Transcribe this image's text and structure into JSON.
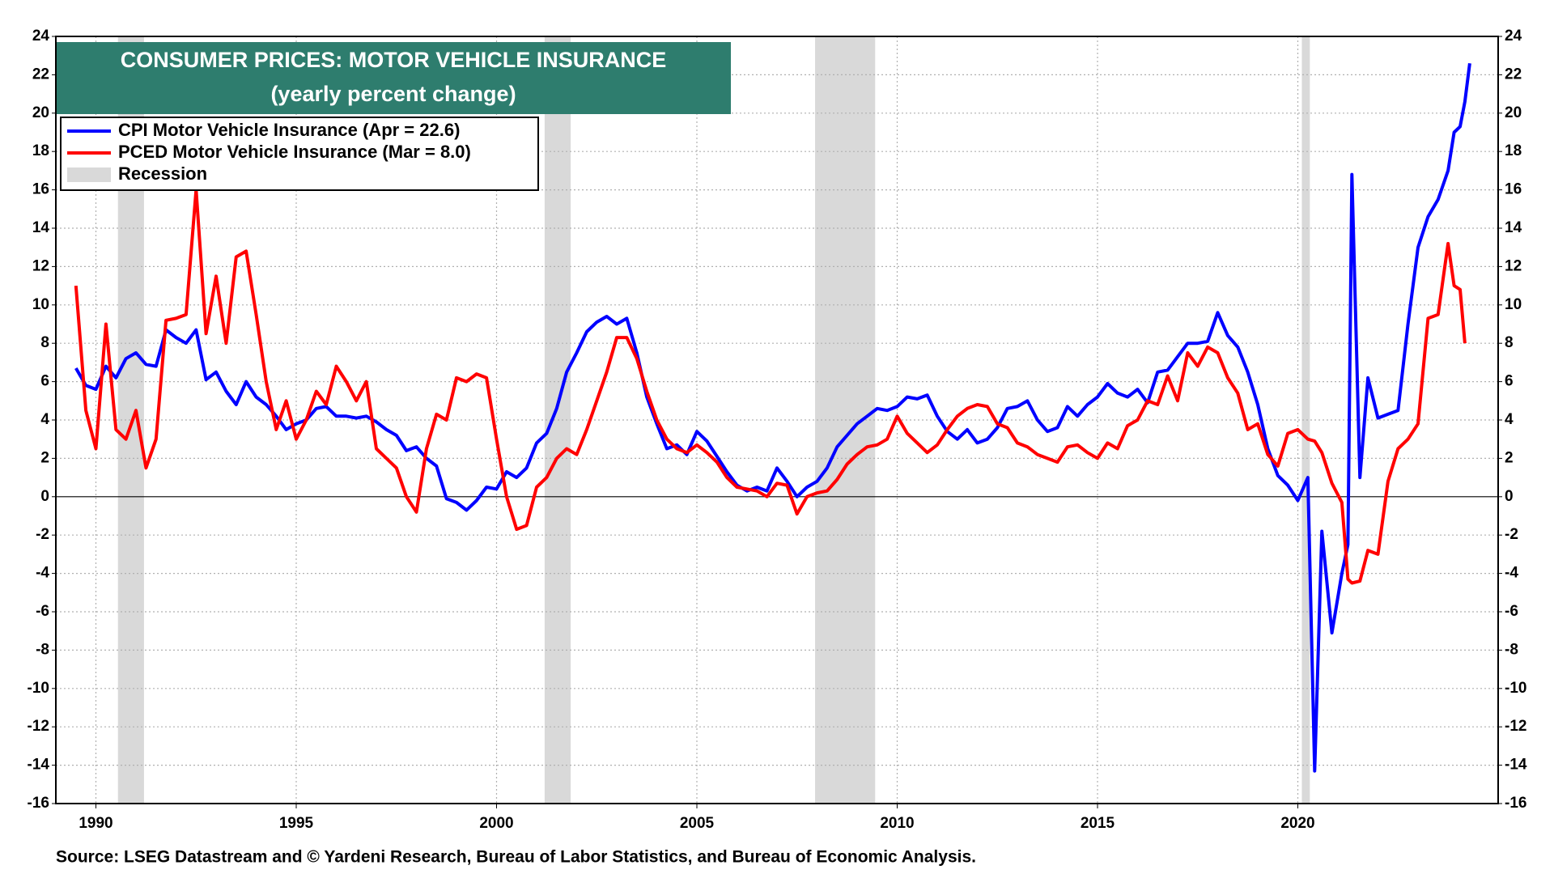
{
  "chart_data": {
    "type": "line",
    "title": "CONSUMER PRICES: MOTOR VEHICLE INSURANCE",
    "subtitle": "(yearly percent change)",
    "source": "Source: LSEG Datastream and © Yardeni Research, Bureau of Labor Statistics, and Bureau of Economic Analysis.",
    "recession_label": "Recession",
    "recession_color": "#d9d9d9",
    "recessions": [
      [
        1990.55,
        1991.2
      ],
      [
        2001.2,
        2001.85
      ],
      [
        2007.95,
        2009.45
      ],
      [
        2020.1,
        2020.3
      ]
    ],
    "x": [
      1989.5,
      1989.75,
      1990,
      1990.25,
      1990.5,
      1990.75,
      1991,
      1991.25,
      1991.5,
      1991.75,
      1992,
      1992.25,
      1992.5,
      1992.75,
      1993,
      1993.25,
      1993.5,
      1993.75,
      1994,
      1994.25,
      1994.5,
      1994.75,
      1995,
      1995.25,
      1995.5,
      1995.75,
      1996,
      1996.25,
      1996.5,
      1996.75,
      1997,
      1997.25,
      1997.5,
      1997.75,
      1998,
      1998.25,
      1998.5,
      1998.75,
      1999,
      1999.25,
      1999.5,
      1999.75,
      2000,
      2000.25,
      2000.5,
      2000.75,
      2001,
      2001.25,
      2001.5,
      2001.75,
      2002,
      2002.25,
      2002.5,
      2002.75,
      2003,
      2003.25,
      2003.5,
      2003.75,
      2004,
      2004.25,
      2004.5,
      2004.75,
      2005,
      2005.25,
      2005.5,
      2005.75,
      2006,
      2006.25,
      2006.5,
      2006.75,
      2007,
      2007.25,
      2007.5,
      2007.75,
      2008,
      2008.25,
      2008.5,
      2008.75,
      2009,
      2009.25,
      2009.5,
      2009.75,
      2010,
      2010.25,
      2010.5,
      2010.75,
      2011,
      2011.25,
      2011.5,
      2011.75,
      2012,
      2012.25,
      2012.5,
      2012.75,
      2013,
      2013.25,
      2013.5,
      2013.75,
      2014,
      2014.25,
      2014.5,
      2014.75,
      2015,
      2015.25,
      2015.5,
      2015.75,
      2016,
      2016.25,
      2016.5,
      2016.75,
      2017,
      2017.25,
      2017.5,
      2017.75,
      2018,
      2018.25,
      2018.5,
      2018.75,
      2019,
      2019.25,
      2019.5,
      2019.75,
      2020,
      2020.25,
      2020.42,
      2020.6,
      2020.85,
      2021.1,
      2021.25,
      2021.35,
      2021.55,
      2021.75,
      2022,
      2022.25,
      2022.5,
      2022.75,
      2023,
      2023.25,
      2023.5,
      2023.75,
      2023.9,
      2024.05,
      2024.17,
      2024.29
    ],
    "series": [
      {
        "name": "CPI  Motor Vehicle Insurance (Apr = 22.6)",
        "color": "#0000ff",
        "values": [
          6.7,
          5.8,
          5.6,
          6.8,
          6.2,
          7.2,
          7.5,
          6.9,
          6.8,
          8.7,
          8.3,
          8.0,
          8.7,
          6.1,
          6.5,
          5.5,
          4.8,
          6.0,
          5.2,
          4.8,
          4.2,
          3.5,
          3.8,
          4.0,
          4.6,
          4.7,
          4.2,
          4.2,
          4.1,
          4.2,
          3.9,
          3.5,
          3.2,
          2.4,
          2.6,
          2.0,
          1.6,
          -0.1,
          -0.3,
          -0.7,
          -0.2,
          0.5,
          0.4,
          1.3,
          1.0,
          1.5,
          2.8,
          3.3,
          4.6,
          6.5,
          7.5,
          8.6,
          9.1,
          9.4,
          9.0,
          9.3,
          7.5,
          5.2,
          3.8,
          2.5,
          2.7,
          2.2,
          3.4,
          2.9,
          2.1,
          1.3,
          0.6,
          0.3,
          0.5,
          0.3,
          1.5,
          0.8,
          0.0,
          0.5,
          0.8,
          1.5,
          2.6,
          3.2,
          3.8,
          4.2,
          4.6,
          4.5,
          4.7,
          5.2,
          5.1,
          5.3,
          4.2,
          3.4,
          3.0,
          3.5,
          2.8,
          3.0,
          3.6,
          4.6,
          4.7,
          5.0,
          4.0,
          3.4,
          3.6,
          4.7,
          4.2,
          4.8,
          5.2,
          5.9,
          5.4,
          5.2,
          5.6,
          4.9,
          6.5,
          6.6,
          7.3,
          8.0,
          8.0,
          8.1,
          9.6,
          8.4,
          7.8,
          6.5,
          4.8,
          2.5,
          1.1,
          0.6,
          -0.2,
          1.0,
          -14.3,
          -1.8,
          -7.1,
          -4.0,
          -2.5,
          16.8,
          1.0,
          6.2,
          4.1,
          4.3,
          4.5,
          9.0,
          13.0,
          14.6,
          15.5,
          17.0,
          19.0,
          19.3,
          20.6,
          22.6
        ]
      },
      {
        "name": "PCED Motor Vehicle Insurance (Mar = 8.0)",
        "color": "#ff0000",
        "values": [
          11.0,
          4.5,
          2.5,
          9.0,
          3.5,
          3.0,
          4.5,
          1.5,
          3.0,
          9.2,
          9.3,
          9.5,
          16.0,
          8.5,
          11.5,
          8.0,
          12.5,
          12.8,
          9.5,
          6.0,
          3.5,
          5.0,
          3.0,
          4.0,
          5.5,
          4.8,
          6.8,
          6.0,
          5.0,
          6.0,
          2.5,
          2.0,
          1.5,
          0.0,
          -0.8,
          2.5,
          4.3,
          4.0,
          6.2,
          6.0,
          6.4,
          6.2,
          3.0,
          0.0,
          -1.7,
          -1.5,
          0.5,
          1.0,
          2.0,
          2.5,
          2.2,
          3.5,
          5.0,
          6.5,
          8.3,
          8.3,
          7.2,
          5.5,
          4.0,
          3.0,
          2.5,
          2.3,
          2.7,
          2.3,
          1.8,
          1.0,
          0.5,
          0.4,
          0.3,
          0.0,
          0.7,
          0.6,
          -0.9,
          0.0,
          0.2,
          0.3,
          0.9,
          1.7,
          2.2,
          2.6,
          2.7,
          3.0,
          4.2,
          3.3,
          2.8,
          2.3,
          2.7,
          3.5,
          4.2,
          4.6,
          4.8,
          4.7,
          3.8,
          3.6,
          2.8,
          2.6,
          2.2,
          2.0,
          1.8,
          2.6,
          2.7,
          2.3,
          2.0,
          2.8,
          2.5,
          3.7,
          4.0,
          5.0,
          4.8,
          6.3,
          5.0,
          7.5,
          6.8,
          7.8,
          7.5,
          6.2,
          5.4,
          3.5,
          3.8,
          2.2,
          1.6,
          3.3,
          3.5,
          3.0,
          2.9,
          2.3,
          0.7,
          -0.3,
          -4.3,
          -4.5,
          -4.4,
          -2.8,
          -3.0,
          0.8,
          2.5,
          3.0,
          3.8,
          9.3,
          9.5,
          13.2,
          11.0,
          10.8,
          8.0,
          null
        ]
      }
    ],
    "xlim": [
      1989,
      2025
    ],
    "xticks": [
      1990,
      1995,
      2000,
      2005,
      2010,
      2015,
      2020
    ],
    "ylim": [
      -16,
      24
    ],
    "yticks": [
      -16,
      -14,
      -12,
      -10,
      -8,
      -6,
      -4,
      -2,
      0,
      2,
      4,
      6,
      8,
      10,
      12,
      14,
      16,
      18,
      20,
      22,
      24
    ],
    "y2lim": [
      -16,
      24
    ],
    "y2ticks": [
      -16,
      -14,
      -12,
      -10,
      -8,
      -6,
      -4,
      -2,
      0,
      2,
      4,
      6,
      8,
      10,
      12,
      14,
      16,
      18,
      20,
      22,
      24
    ],
    "grid": true,
    "legend": "upper left"
  }
}
